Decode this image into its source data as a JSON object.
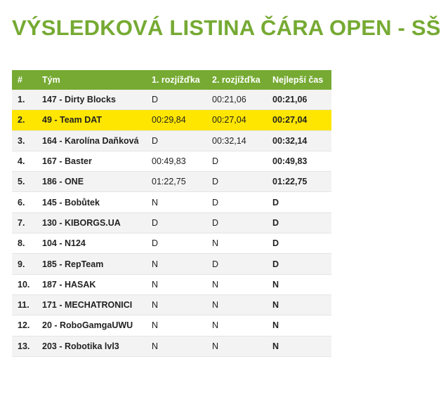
{
  "title": "VÝSLEDKOVÁ LISTINA ČÁRA OPEN - SŠ",
  "highlight_color": "#ffe600",
  "accent_color": "#76aa33",
  "headers": [
    "#",
    "Tým",
    "1. rozjížďka",
    "2. rozjížďka",
    "Nejlepší čas"
  ],
  "rows": [
    [
      "1.",
      "147 - Dirty Blocks",
      "D",
      "00:21,06",
      "00:21,06"
    ],
    [
      "2.",
      "49 - Team DAT",
      "00:29,84",
      "00:27,04",
      "00:27,04"
    ],
    [
      "3.",
      "164 - Karolína Daňková",
      "D",
      "00:32,14",
      "00:32,14"
    ],
    [
      "4.",
      "167 - Baster",
      "00:49,83",
      "D",
      "00:49,83"
    ],
    [
      "5.",
      "186 - ONE",
      "01:22,75",
      "D",
      "01:22,75"
    ],
    [
      "6.",
      "145 - Bobůtek",
      "N",
      "D",
      "D"
    ],
    [
      "7.",
      "130 - KIBORGS.UA",
      "D",
      "D",
      "D"
    ],
    [
      "8.",
      "104 - N124",
      "D",
      "N",
      "D"
    ],
    [
      "9.",
      "185 - RepTeam",
      "N",
      "D",
      "D"
    ],
    [
      "10.",
      "187 - HASAK",
      "N",
      "N",
      "N"
    ],
    [
      "11.",
      "171 - MECHATRONICI",
      "N",
      "N",
      "N"
    ],
    [
      "12.",
      "20 - RoboGamgaUWU",
      "N",
      "N",
      "N"
    ],
    [
      "13.",
      "203 - Robotika lvl3",
      "N",
      "N",
      "N"
    ]
  ]
}
